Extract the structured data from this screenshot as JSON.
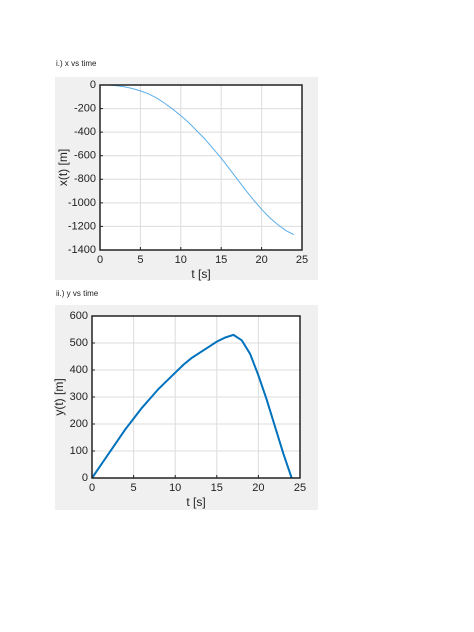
{
  "chart_data": [
    {
      "type": "line",
      "title": "i.) x vs time",
      "xlabel": "t [s]",
      "ylabel": "x(t) [m]",
      "x": [
        1,
        2,
        3,
        4,
        5,
        6,
        7,
        8,
        9,
        10,
        11,
        12,
        13,
        14,
        15,
        16,
        17,
        18,
        19,
        20,
        21,
        22,
        23,
        24
      ],
      "series": [
        {
          "name": "x",
          "color": "#5aaee8",
          "width": 1,
          "values": [
            0,
            -5,
            -15,
            -30,
            -50,
            -75,
            -110,
            -155,
            -205,
            -260,
            -320,
            -390,
            -460,
            -540,
            -620,
            -710,
            -800,
            -890,
            -975,
            -1055,
            -1125,
            -1185,
            -1235,
            -1270
          ]
        }
      ],
      "xlim": [
        0,
        25
      ],
      "xticks": [
        0,
        5,
        10,
        15,
        20,
        25
      ],
      "ylim": [
        -1400,
        0
      ],
      "yticks": [
        0,
        -200,
        -400,
        -600,
        -800,
        -1000,
        -1200,
        -1400
      ],
      "grid": true
    },
    {
      "type": "line",
      "title": "ii.) y vs time",
      "xlabel": "t [s]",
      "ylabel": "y(t) [m]",
      "x": [
        0,
        1,
        2,
        3,
        4,
        5,
        6,
        7,
        8,
        9,
        10,
        11,
        12,
        13,
        14,
        15,
        16,
        17,
        18,
        19,
        20,
        21,
        22,
        23,
        24
      ],
      "series": [
        {
          "name": "y",
          "color": "#0072bd",
          "width": 2,
          "values": [
            0,
            45,
            90,
            135,
            180,
            220,
            260,
            295,
            330,
            360,
            390,
            420,
            445,
            465,
            485,
            505,
            520,
            530,
            510,
            460,
            380,
            290,
            190,
            90,
            0
          ]
        }
      ],
      "xlim": [
        0,
        25
      ],
      "xticks": [
        0,
        5,
        10,
        15,
        20,
        25
      ],
      "ylim": [
        0,
        600
      ],
      "yticks": [
        0,
        100,
        200,
        300,
        400,
        500,
        600
      ],
      "grid": true
    }
  ]
}
